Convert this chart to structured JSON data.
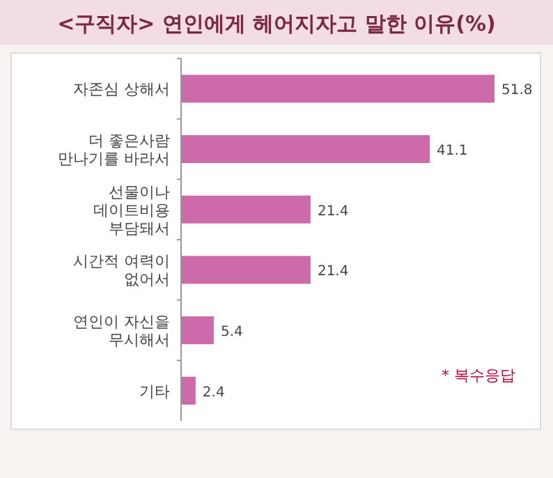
{
  "chart_data": {
    "type": "bar",
    "orientation": "horizontal",
    "title": "<구직자> 연인에게 헤어지자고 말한 이유(%)",
    "categories": [
      "자존심 상해서",
      "더 좋은사람\n만나기를 바라서",
      "선물이나\n데이트비용\n부담돼서",
      "시간적 여력이\n없어서",
      "연인이 자신을\n무시해서",
      "기타"
    ],
    "values": [
      51.8,
      41.1,
      21.4,
      21.4,
      5.4,
      2.4
    ],
    "color": "#cc6aaa",
    "data_labels": true,
    "annotations": [
      "* 복수응답"
    ]
  }
}
